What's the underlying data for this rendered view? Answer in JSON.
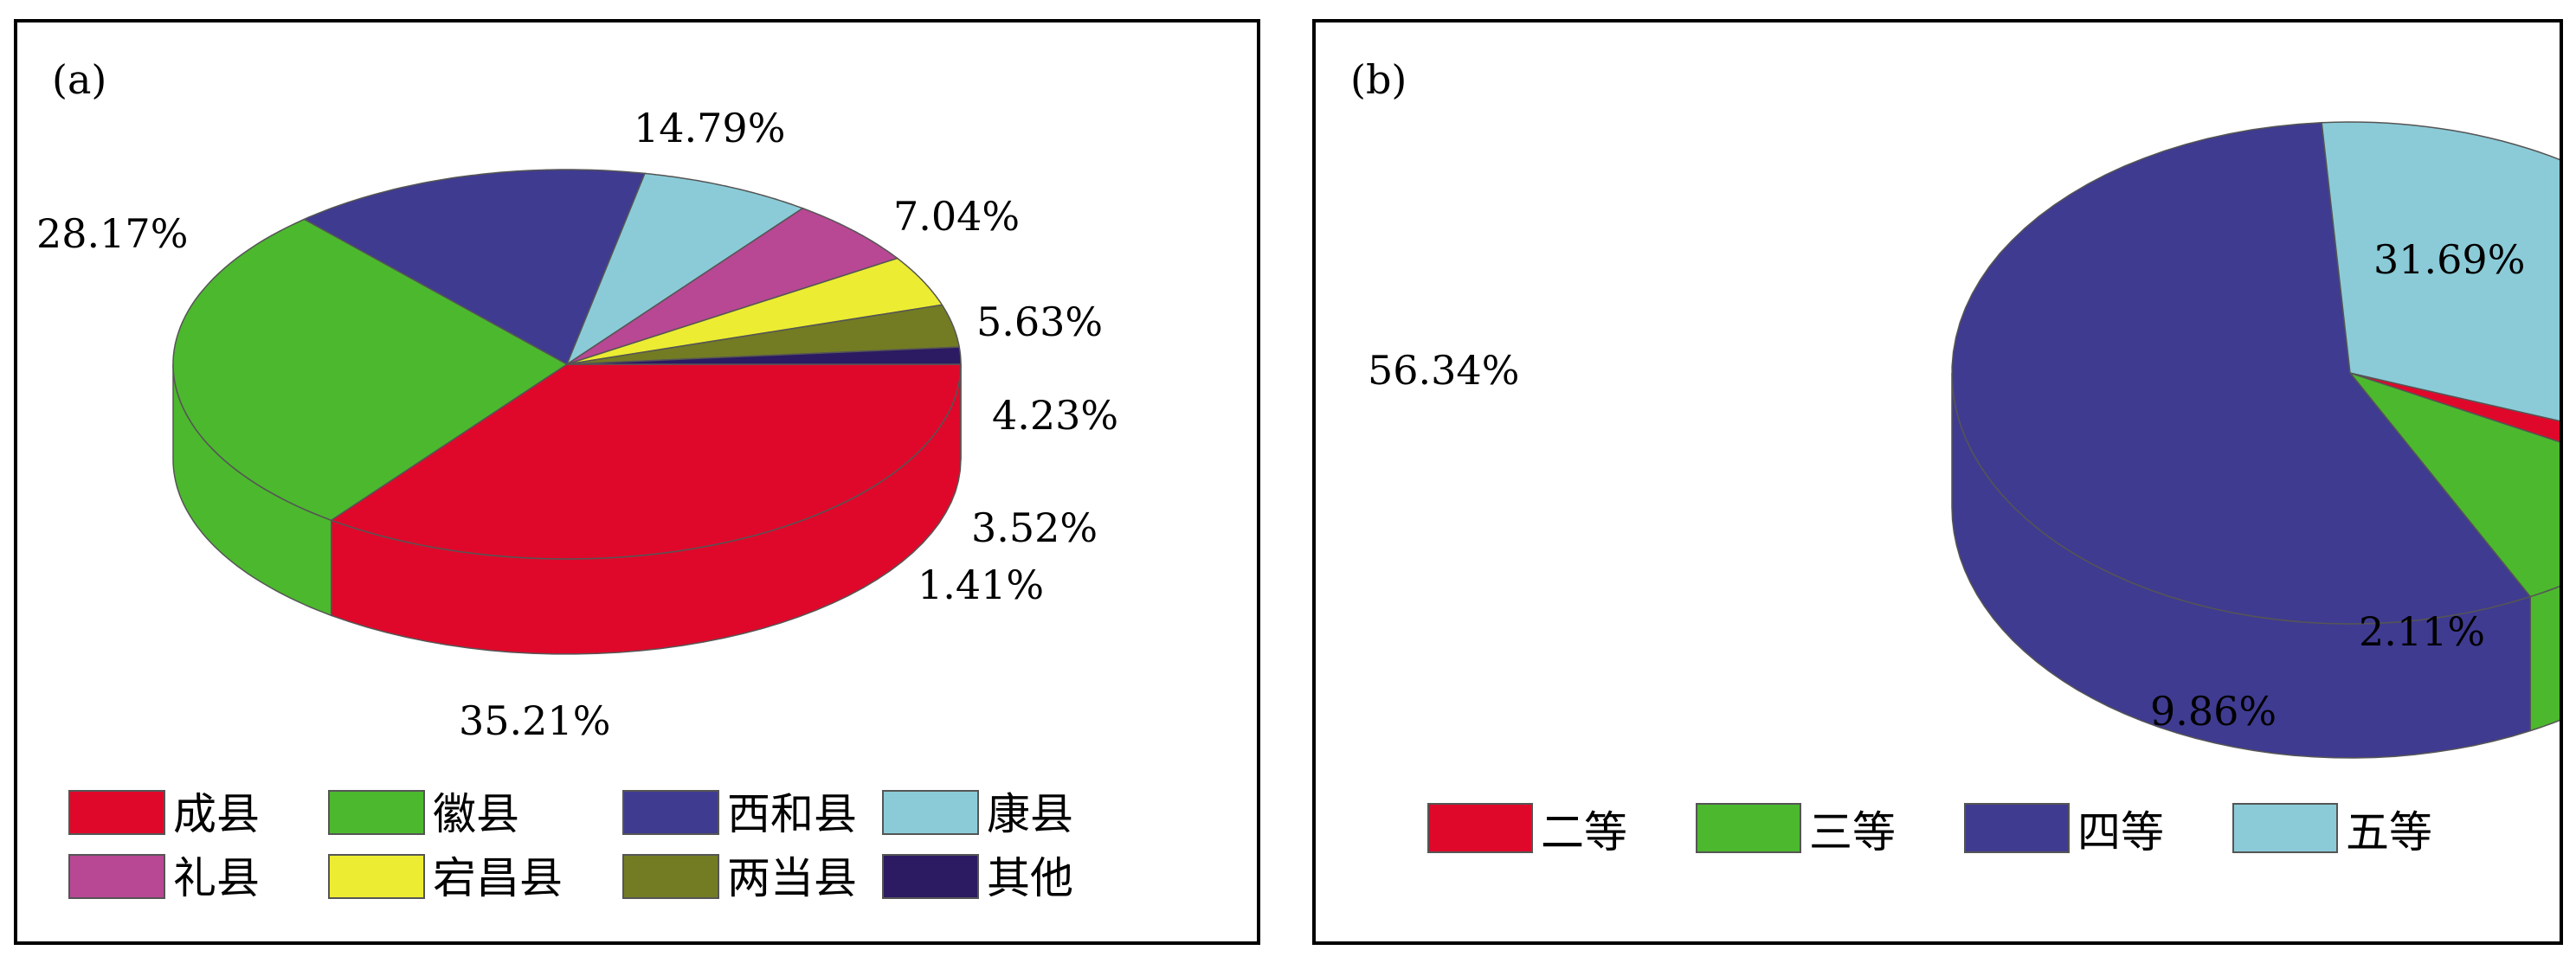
{
  "chart_data": [
    {
      "type": "pie",
      "panel_label": "(a)",
      "categories": [
        "成县",
        "徽县",
        "西和县",
        "康县",
        "礼县",
        "宕昌县",
        "两当县",
        "其他"
      ],
      "values": [
        35.21,
        28.17,
        14.79,
        7.04,
        5.63,
        4.23,
        3.52,
        1.41
      ],
      "value_labels": [
        "35.21%",
        "28.17%",
        "14.79%",
        "7.04%",
        "5.63%",
        "4.23%",
        "3.52%",
        "1.41%"
      ],
      "colors": [
        "#e0082a",
        "#4cb82e",
        "#3f3b91",
        "#8bcbd8",
        "#b84794",
        "#ecec32",
        "#737c23",
        "#2c1a63"
      ],
      "legend": "bottom"
    },
    {
      "type": "pie",
      "panel_label": "(b)",
      "categories": [
        "二等",
        "三等",
        "四等",
        "五等"
      ],
      "values": [
        2.11,
        9.86,
        56.34,
        31.69
      ],
      "value_labels": [
        "2.11%",
        "9.86%",
        "56.34%",
        "31.69%"
      ],
      "colors": [
        "#e0082a",
        "#4cb82e",
        "#3f3b91",
        "#8bcbd8"
      ],
      "legend": "bottom"
    }
  ]
}
